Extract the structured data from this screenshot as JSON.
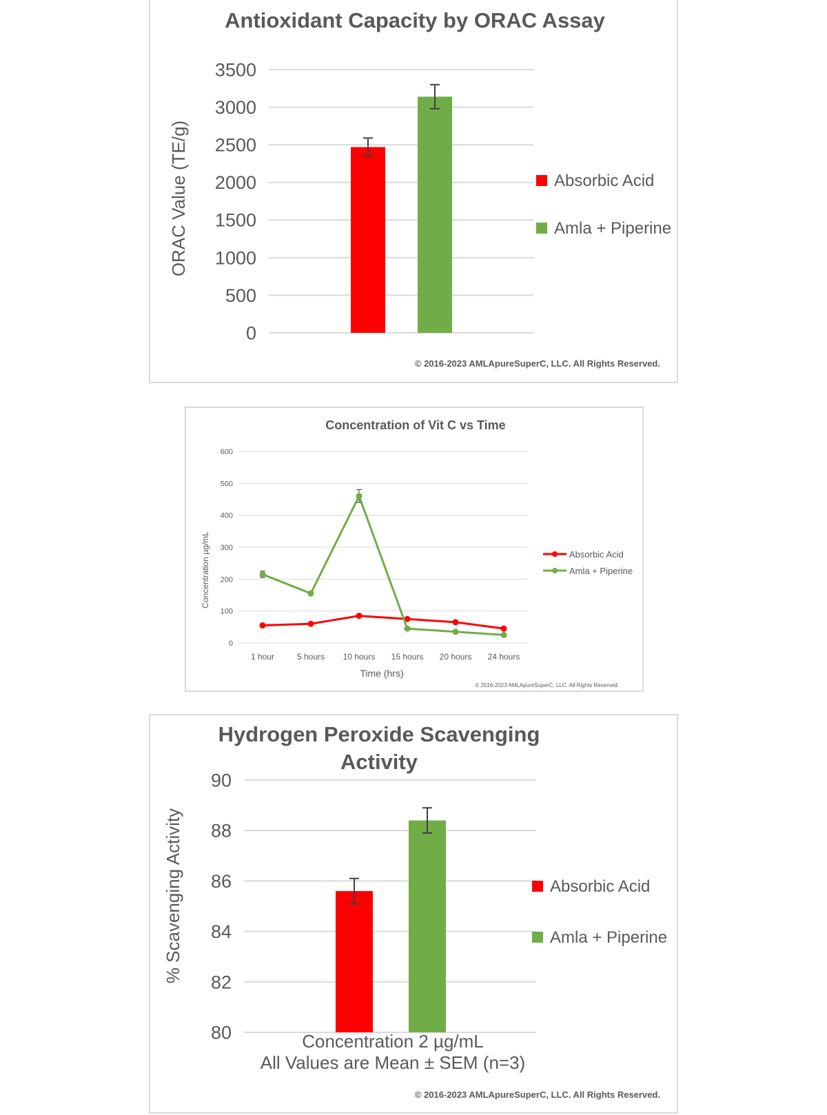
{
  "chart_data": [
    {
      "type": "bar",
      "title": "Antioxidant Capacity by ORAC Assay",
      "xlabel": "",
      "ylabel": "ORAC Value (TE/g)",
      "ylim": [
        0,
        3500
      ],
      "yticks": [
        0,
        500,
        1000,
        1500,
        2000,
        2500,
        3000,
        3500
      ],
      "grid": true,
      "legend_position": "right",
      "series": [
        {
          "name": "Absorbic Acid",
          "color": "#ff0000",
          "values": [
            2470
          ],
          "error": [
            120
          ]
        },
        {
          "name": "Amla + Piperine",
          "color": "#70ad47",
          "values": [
            3140
          ],
          "error": [
            160
          ]
        }
      ],
      "annotations": [
        "© 2016-2023 AMLApureSuperC, LLC. All Rights Reserved."
      ]
    },
    {
      "type": "line",
      "title": "Concentration of Vit C vs Time",
      "xlabel": "Time (hrs)",
      "ylabel": "Concentration µg/mL",
      "categories": [
        "1 hour",
        "5 hours",
        "10 hours",
        "15 hours",
        "20 hours",
        "24 hours"
      ],
      "ylim": [
        0,
        600
      ],
      "yticks": [
        0,
        100,
        200,
        300,
        400,
        500,
        600
      ],
      "grid": true,
      "legend_position": "right",
      "series": [
        {
          "name": "Absorbic Acid",
          "color": "#ff0000",
          "values": [
            55,
            60,
            85,
            75,
            65,
            45
          ]
        },
        {
          "name": "Amla + Piperine",
          "color": "#70ad47",
          "values": [
            215,
            155,
            460,
            45,
            35,
            25
          ],
          "error": [
            10,
            0,
            20,
            0,
            0,
            0
          ]
        }
      ],
      "annotations": [
        "© 2016-2023 AMLApureSuperC, LLC. All Rights Reserved."
      ]
    },
    {
      "type": "bar",
      "title": "Hydrogen Peroxide Scavenging Activity",
      "xlabel": "Concentration 2 µg/mL",
      "xlabel2": "All Values are Mean ± SEM (n=3)",
      "ylabel": "% Scavenging Activity",
      "ylim": [
        80,
        90
      ],
      "yticks": [
        80,
        82,
        84,
        86,
        88,
        90
      ],
      "grid": true,
      "legend_position": "right",
      "series": [
        {
          "name": "Absorbic Acid",
          "color": "#ff0000",
          "values": [
            85.6
          ],
          "error": [
            0.5
          ]
        },
        {
          "name": "Amla + Piperine",
          "color": "#70ad47",
          "values": [
            88.4
          ],
          "error": [
            0.5
          ]
        }
      ],
      "annotations": [
        "© 2016-2023 AMLApureSuperC, LLC. All Rights Reserved."
      ]
    }
  ]
}
